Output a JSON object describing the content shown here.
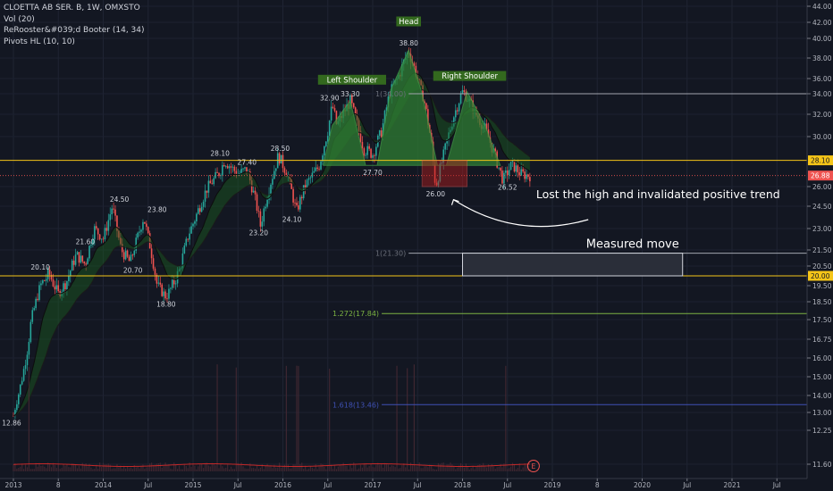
{
  "legend": {
    "symbol": "CLOETTA AB SER. B, 1W, OMXSTO",
    "vol": "Vol (20)",
    "indicator": "ReRooster&#039;d Booter (14, 34)",
    "pivots": "Pivots HL (10, 10)"
  },
  "colors": {
    "background": "#131722",
    "up": "#26a69a",
    "down": "#ef5350",
    "horizontal_orange": "#f5c518",
    "horizontal_gray": "#a3a6af",
    "current_price": "#ef5350",
    "fib_1272": "#7cb342",
    "fib_1618": "#3f51b5",
    "pattern_fill": "#2e7d32"
  },
  "chart_data": {
    "type": "candlestick",
    "y_axis": {
      "ticks": [
        "44.00",
        "42.00",
        "40.00",
        "38.00",
        "36.00",
        "34.00",
        "32.00",
        "30.00",
        "26.00",
        "24.50",
        "23.00",
        "21.50",
        "20.50",
        "19.50",
        "18.50",
        "17.50",
        "16.75",
        "16.00",
        "15.00",
        "14.00",
        "13.00",
        "12.25",
        "11.60"
      ],
      "current_price": "26.88",
      "level_labels": [
        "28.10",
        "20.00"
      ]
    },
    "x_axis": {
      "ticks": [
        {
          "label": "2013",
          "pos": 0.0
        },
        {
          "label": "8",
          "pos": 0.5
        },
        {
          "label": "2014",
          "pos": 1.0
        },
        {
          "label": "Jul",
          "pos": 1.5
        },
        {
          "label": "2015",
          "pos": 2.0
        },
        {
          "label": "Jul",
          "pos": 2.5
        },
        {
          "label": "2016",
          "pos": 3.0
        },
        {
          "label": "Jul",
          "pos": 3.5
        },
        {
          "label": "2017",
          "pos": 4.0
        },
        {
          "label": "Jul",
          "pos": 4.5
        },
        {
          "label": "2018",
          "pos": 5.0
        },
        {
          "label": "Jul",
          "pos": 5.5
        },
        {
          "label": "2019",
          "pos": 6.0
        },
        {
          "label": "8",
          "pos": 6.5
        },
        {
          "label": "2020",
          "pos": 7.0
        },
        {
          "label": "Jul",
          "pos": 7.5
        },
        {
          "label": "2021",
          "pos": 8.0
        },
        {
          "label": "Jul",
          "pos": 8.5
        }
      ]
    },
    "price_path": [
      [
        0.0,
        12.86
      ],
      [
        0.1,
        15.0
      ],
      [
        0.2,
        17.5
      ],
      [
        0.3,
        19.5
      ],
      [
        0.4,
        20.1
      ],
      [
        0.5,
        19.0
      ],
      [
        0.6,
        19.8
      ],
      [
        0.7,
        21.2
      ],
      [
        0.8,
        20.6
      ],
      [
        0.9,
        23.0
      ],
      [
        1.0,
        22.3
      ],
      [
        1.1,
        24.5
      ],
      [
        1.2,
        21.5
      ],
      [
        1.3,
        20.7
      ],
      [
        1.45,
        23.8
      ],
      [
        1.6,
        19.5
      ],
      [
        1.7,
        18.8
      ],
      [
        1.85,
        20.3
      ],
      [
        1.95,
        22.6
      ],
      [
        2.05,
        24.1
      ],
      [
        2.15,
        25.8
      ],
      [
        2.3,
        27.2
      ],
      [
        2.35,
        28.1
      ],
      [
        2.5,
        27.0
      ],
      [
        2.6,
        27.4
      ],
      [
        2.7,
        24.8
      ],
      [
        2.75,
        23.2
      ],
      [
        2.85,
        26.0
      ],
      [
        2.95,
        28.5
      ],
      [
        3.05,
        27.0
      ],
      [
        3.15,
        24.1
      ],
      [
        3.25,
        26.1
      ],
      [
        3.4,
        27.6
      ],
      [
        3.5,
        30.5
      ],
      [
        3.55,
        32.9
      ],
      [
        3.6,
        31.0
      ],
      [
        3.75,
        33.3
      ],
      [
        3.9,
        29.0
      ],
      [
        4.0,
        28.6
      ],
      [
        4.1,
        30.5
      ],
      [
        4.2,
        34.5
      ],
      [
        4.3,
        36.5
      ],
      [
        4.4,
        38.8
      ],
      [
        4.5,
        36.0
      ],
      [
        4.58,
        33.0
      ],
      [
        4.65,
        29.6
      ],
      [
        4.7,
        26.0
      ],
      [
        4.8,
        28.8
      ],
      [
        4.9,
        31.8
      ],
      [
        5.0,
        34.3
      ],
      [
        5.05,
        33.7
      ],
      [
        5.15,
        32.0
      ],
      [
        5.25,
        30.7
      ],
      [
        5.35,
        28.7
      ],
      [
        5.45,
        26.5
      ],
      [
        5.55,
        27.8
      ],
      [
        5.65,
        27.0
      ],
      [
        5.75,
        26.88
      ]
    ],
    "pivot_labels": [
      {
        "label": "20.10",
        "t": 0.3,
        "v": 20.1,
        "side": "above"
      },
      {
        "label": "21.60",
        "t": 0.8,
        "v": 21.6,
        "side": "above"
      },
      {
        "label": "24.50",
        "t": 1.18,
        "v": 24.5,
        "side": "above"
      },
      {
        "label": "20.70",
        "t": 1.33,
        "v": 20.7,
        "side": "below"
      },
      {
        "label": "23.80",
        "t": 1.6,
        "v": 23.8,
        "side": "above"
      },
      {
        "label": "18.80",
        "t": 1.7,
        "v": 18.8,
        "side": "below"
      },
      {
        "label": "28.10",
        "t": 2.3,
        "v": 28.1,
        "side": "above"
      },
      {
        "label": "27.40",
        "t": 2.6,
        "v": 27.4,
        "side": "above"
      },
      {
        "label": "23.20",
        "t": 2.73,
        "v": 23.2,
        "side": "below"
      },
      {
        "label": "28.50",
        "t": 2.97,
        "v": 28.5,
        "side": "above"
      },
      {
        "label": "24.10",
        "t": 3.1,
        "v": 24.1,
        "side": "below"
      },
      {
        "label": "32.90",
        "t": 3.52,
        "v": 32.9,
        "side": "above"
      },
      {
        "label": "33.30",
        "t": 3.75,
        "v": 33.3,
        "side": "above"
      },
      {
        "label": "27.70",
        "t": 4.0,
        "v": 27.7,
        "side": "below"
      },
      {
        "label": "38.80",
        "t": 4.4,
        "v": 38.8,
        "side": "above"
      },
      {
        "label": "26.00",
        "t": 4.7,
        "v": 26.0,
        "side": "below"
      },
      {
        "label": "26.52",
        "t": 5.5,
        "v": 26.52,
        "side": "below"
      },
      {
        "label": "12.86",
        "t": -0.02,
        "v": 12.86,
        "side": "below"
      }
    ],
    "pattern": {
      "left_shoulder": "Left Shoulder",
      "head": "Head",
      "right_shoulder": "Right Shoulder",
      "neckline": 27.7
    },
    "levels": [
      {
        "value": 34.0,
        "label": "1(34.00)",
        "color": "#a3a6af"
      },
      {
        "value": 28.1,
        "label": "",
        "color": "#f5c518"
      },
      {
        "value": 20.0,
        "label": "",
        "color": "#f5c518"
      },
      {
        "value": 21.3,
        "label": "1(21.30)",
        "color": "#a3a6af"
      },
      {
        "value": 17.84,
        "label": "1.272(17.84)",
        "color": "#7cb342"
      },
      {
        "value": 13.46,
        "label": "1.618(13.46)",
        "color": "#3f51b5"
      }
    ],
    "invalidation_box": {
      "t0": 4.55,
      "t1": 5.05,
      "v0": 28.1,
      "v1": 26.0
    },
    "measured_move_box": {
      "t0": 5.0,
      "t1": 7.45,
      "v0": 21.3,
      "v1": 20.0
    },
    "annotations": {
      "lost_high": "Lost the high and invalidated positive trend",
      "measured_move": "Measured move",
      "earnings_marker": "E"
    }
  }
}
